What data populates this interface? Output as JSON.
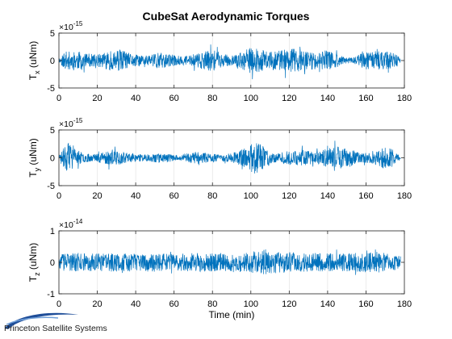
{
  "title": "CubeSat Aerodynamic Torques",
  "xlabel": "Time (min)",
  "logo_text": "Princeton Satellite Systems",
  "colors": {
    "series": "#0072BD",
    "axes": "#262626",
    "grid": "#dfdfdf"
  },
  "chart_data": [
    {
      "type": "line",
      "ylabel_main": "T",
      "ylabel_sub": "x",
      "ylabel_unit": " (uNm)",
      "exponent_base": "×10",
      "exponent_power": "-15",
      "xlim": [
        0,
        180
      ],
      "ylim": [
        -5,
        5
      ],
      "xticks": [
        0,
        20,
        40,
        60,
        80,
        100,
        120,
        140,
        160,
        180
      ],
      "yticks": [
        -5,
        0,
        5
      ],
      "seed": 11,
      "envelope": [
        [
          0,
          0.3
        ],
        [
          3,
          1.6
        ],
        [
          8,
          1.8
        ],
        [
          15,
          1.3
        ],
        [
          20,
          1.1
        ],
        [
          25,
          1.6
        ],
        [
          32,
          2.0
        ],
        [
          38,
          1.2
        ],
        [
          45,
          1.0
        ],
        [
          50,
          1.5
        ],
        [
          55,
          1.4
        ],
        [
          60,
          1.0
        ],
        [
          65,
          0.8
        ],
        [
          72,
          1.3
        ],
        [
          80,
          2.0
        ],
        [
          84,
          1.3
        ],
        [
          90,
          0.9
        ],
        [
          95,
          1.5
        ],
        [
          100,
          2.4
        ],
        [
          105,
          2.0
        ],
        [
          110,
          1.7
        ],
        [
          115,
          1.9
        ],
        [
          122,
          2.2
        ],
        [
          128,
          1.8
        ],
        [
          135,
          1.6
        ],
        [
          140,
          1.9
        ],
        [
          145,
          1.2
        ],
        [
          150,
          0.5
        ],
        [
          155,
          0.9
        ],
        [
          160,
          1.6
        ],
        [
          166,
          1.8
        ],
        [
          172,
          1.5
        ],
        [
          176,
          1.2
        ],
        [
          178,
          0.3
        ]
      ]
    },
    {
      "type": "line",
      "ylabel_main": "T",
      "ylabel_sub": "y",
      "ylabel_unit": " (uNm)",
      "exponent_base": "×10",
      "exponent_power": "-15",
      "xlim": [
        0,
        180
      ],
      "ylim": [
        -5,
        5
      ],
      "xticks": [
        0,
        20,
        40,
        60,
        80,
        100,
        120,
        140,
        160,
        180
      ],
      "yticks": [
        -5,
        0,
        5
      ],
      "seed": 23,
      "envelope": [
        [
          0,
          0.3
        ],
        [
          2,
          1.8
        ],
        [
          5,
          2.8
        ],
        [
          8,
          1.8
        ],
        [
          12,
          0.9
        ],
        [
          18,
          0.6
        ],
        [
          22,
          1.0
        ],
        [
          28,
          1.5
        ],
        [
          34,
          1.0
        ],
        [
          40,
          0.7
        ],
        [
          46,
          0.6
        ],
        [
          52,
          0.9
        ],
        [
          58,
          0.7
        ],
        [
          62,
          0.4
        ],
        [
          66,
          0.7
        ],
        [
          72,
          1.2
        ],
        [
          78,
          0.8
        ],
        [
          84,
          0.6
        ],
        [
          90,
          0.8
        ],
        [
          96,
          1.6
        ],
        [
          100,
          2.5
        ],
        [
          103,
          3.0
        ],
        [
          108,
          1.6
        ],
        [
          114,
          0.8
        ],
        [
          120,
          1.3
        ],
        [
          128,
          1.4
        ],
        [
          134,
          1.0
        ],
        [
          140,
          1.7
        ],
        [
          146,
          2.1
        ],
        [
          152,
          1.6
        ],
        [
          158,
          0.8
        ],
        [
          163,
          1.0
        ],
        [
          168,
          1.9
        ],
        [
          174,
          1.6
        ],
        [
          178,
          0.3
        ]
      ]
    },
    {
      "type": "line",
      "ylabel_main": "T",
      "ylabel_sub": "z",
      "ylabel_unit": " (uNm)",
      "exponent_base": "×10",
      "exponent_power": "-14",
      "xlim": [
        0,
        180
      ],
      "ylim": [
        -1,
        1
      ],
      "xticks": [
        0,
        20,
        40,
        60,
        80,
        100,
        120,
        140,
        160,
        180
      ],
      "yticks": [
        -1,
        0,
        1
      ],
      "seed": 37,
      "envelope": [
        [
          0,
          0.2
        ],
        [
          3,
          0.28
        ],
        [
          10,
          0.3
        ],
        [
          20,
          0.28
        ],
        [
          30,
          0.3
        ],
        [
          40,
          0.27
        ],
        [
          50,
          0.3
        ],
        [
          60,
          0.26
        ],
        [
          70,
          0.3
        ],
        [
          80,
          0.29
        ],
        [
          90,
          0.28
        ],
        [
          100,
          0.34
        ],
        [
          105,
          0.42
        ],
        [
          110,
          0.38
        ],
        [
          118,
          0.32
        ],
        [
          125,
          0.3
        ],
        [
          135,
          0.3
        ],
        [
          145,
          0.28
        ],
        [
          155,
          0.32
        ],
        [
          165,
          0.34
        ],
        [
          172,
          0.3
        ],
        [
          178,
          0.2
        ]
      ]
    }
  ]
}
